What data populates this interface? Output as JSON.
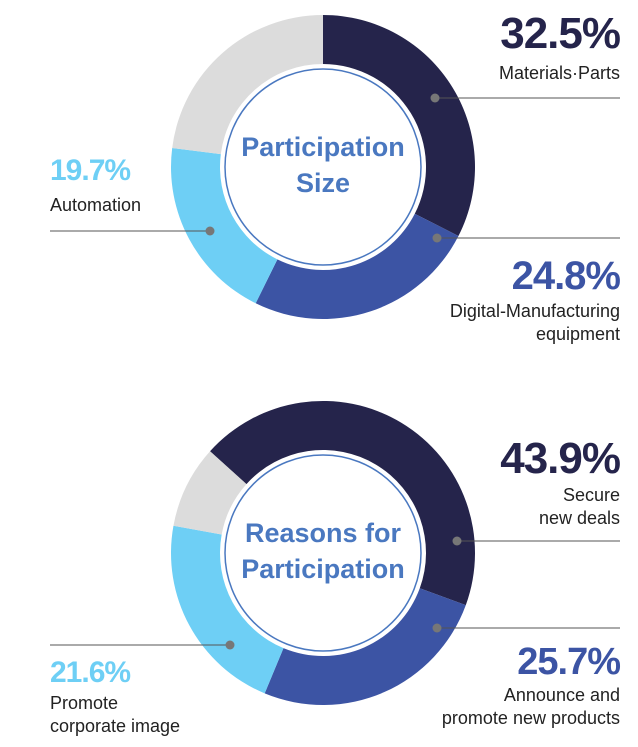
{
  "chart_data": [
    {
      "type": "donut",
      "title": "Participation\nSize",
      "start_angle": 0,
      "categories": [
        "Materials·Parts",
        "Digital-Manufacturing\nequipment",
        "Automation",
        null
      ],
      "values": [
        32.5,
        24.8,
        19.7,
        23.0
      ],
      "value_labels": [
        "32.5%",
        "24.8%",
        "19.7%",
        null
      ],
      "colors": [
        "#25244b",
        "#3c54a4",
        "#6ecff5",
        "#dcdcdc"
      ]
    },
    {
      "type": "donut",
      "title": "Reasons for\nParticipation",
      "start_angle": -48,
      "categories": [
        "Secure\nnew deals",
        "Announce and\npromote new products",
        "Promote\ncorporate image",
        null
      ],
      "values": [
        43.9,
        25.7,
        21.6,
        8.8
      ],
      "value_labels": [
        "43.9%",
        "25.7%",
        "21.6%",
        null
      ],
      "colors": [
        "#25244b",
        "#3c54a4",
        "#6ecff5",
        "#dcdcdc"
      ]
    }
  ]
}
